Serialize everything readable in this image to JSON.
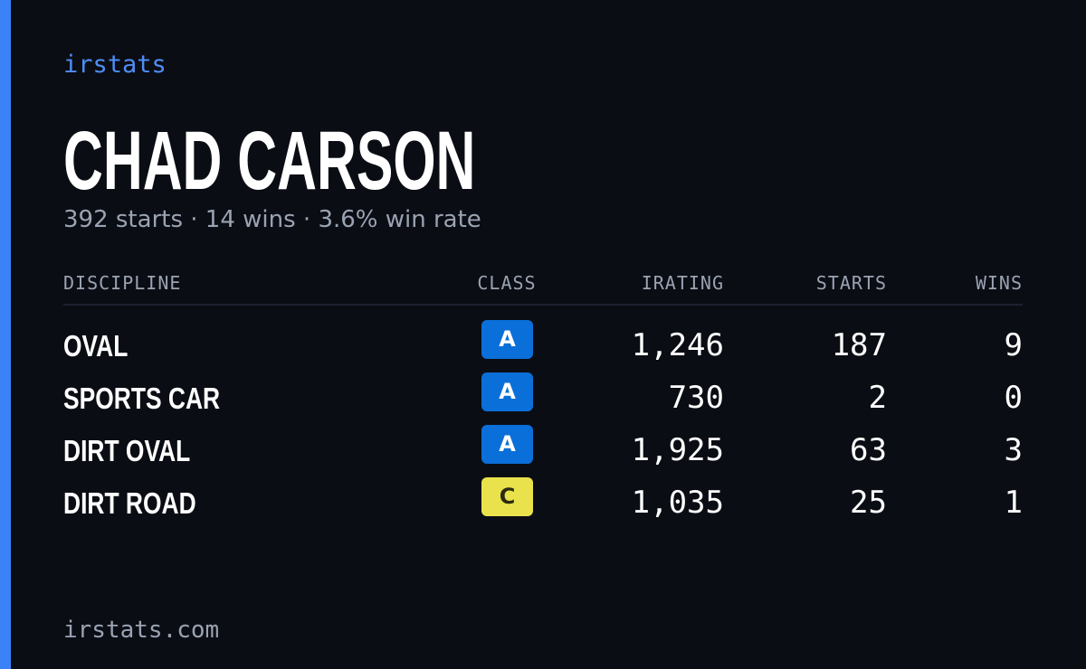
{
  "brand": "irstats",
  "driver": {
    "name": "CHAD CARSON",
    "summary": "392 starts · 14 wins · 3.6% win rate"
  },
  "table": {
    "headers": [
      "DISCIPLINE",
      "CLASS",
      "IRATING",
      "STARTS",
      "WINS"
    ],
    "rows": [
      {
        "discipline": "OVAL",
        "class": "A",
        "class_color": "#0a6fd8",
        "irating": "1,246",
        "starts": "187",
        "wins": "9"
      },
      {
        "discipline": "SPORTS CAR",
        "class": "A",
        "class_color": "#0a6fd8",
        "irating": "730",
        "starts": "2",
        "wins": "0"
      },
      {
        "discipline": "DIRT OVAL",
        "class": "A",
        "class_color": "#0a6fd8",
        "irating": "1,925",
        "starts": "63",
        "wins": "3"
      },
      {
        "discipline": "DIRT ROAD",
        "class": "C",
        "class_color": "#e9e24c",
        "irating": "1,035",
        "starts": "25",
        "wins": "1"
      }
    ]
  },
  "footer": "irstats.com"
}
